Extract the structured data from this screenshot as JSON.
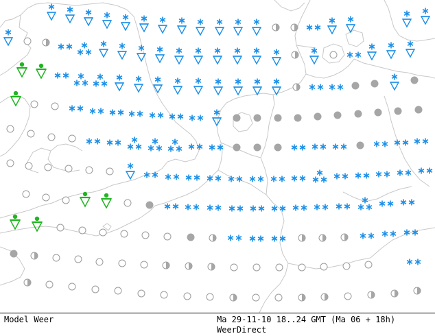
{
  "footer": {
    "model_label": "Model Weer",
    "timestamp": "Ma 29-11-10 18..24 GMT (Ma 06 + 18h)",
    "brand": "WeerDirect"
  },
  "legend_colors": {
    "snow": "#1a8fe8",
    "rain": "#22b422",
    "cloud": "#a6a6a6",
    "coastline": "#c8c8c8"
  },
  "symbol_kinds": [
    "snow-shower",
    "snow",
    "rain-shower",
    "cloudy",
    "half-cloudy",
    "clear"
  ]
}
